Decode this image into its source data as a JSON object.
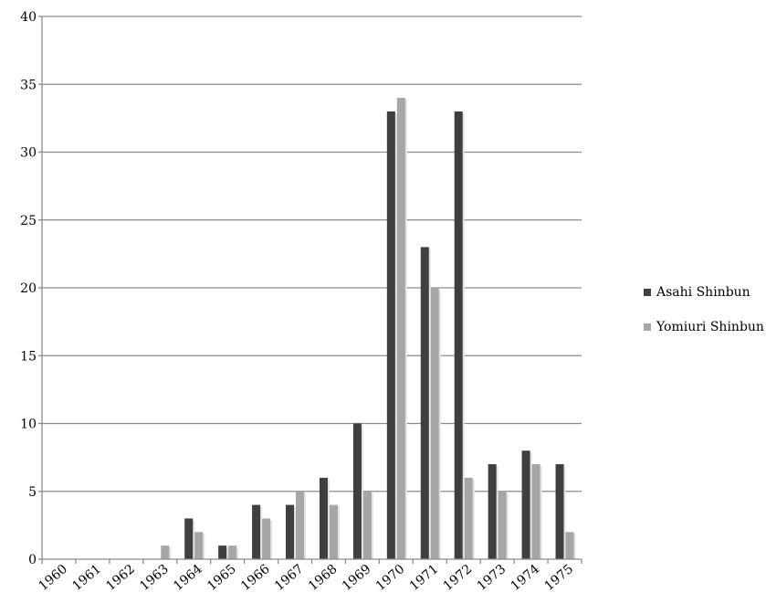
{
  "chart_data": {
    "type": "bar",
    "categories": [
      "1960",
      "1961",
      "1962",
      "1963",
      "1964",
      "1965",
      "1966",
      "1967",
      "1968",
      "1969",
      "1970",
      "1971",
      "1972",
      "1973",
      "1974",
      "1975"
    ],
    "series": [
      {
        "name": "Asahi Shinbun",
        "color": "#3f3f3f",
        "values": [
          0,
          0,
          0,
          0,
          3,
          1,
          4,
          4,
          6,
          10,
          33,
          23,
          33,
          7,
          8,
          7
        ]
      },
      {
        "name": "Yomiuri Shinbun",
        "color": "#a6a6a6",
        "values": [
          0,
          0,
          0,
          1,
          2,
          1,
          3,
          5,
          4,
          5,
          34,
          20,
          6,
          5,
          7,
          2
        ]
      }
    ],
    "yticks": [
      "0",
      "5",
      "10",
      "15",
      "20",
      "25",
      "30",
      "35",
      "40"
    ],
    "ylim": [
      0,
      40
    ],
    "grid": true,
    "legend_position": "right"
  }
}
